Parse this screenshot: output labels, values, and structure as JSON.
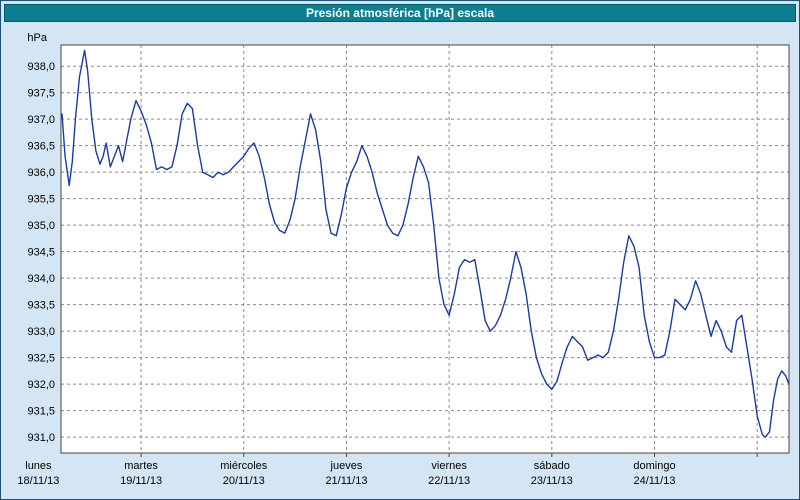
{
  "window": {
    "title": "Presión atmosférica [hPa] escala"
  },
  "chart_data": {
    "type": "line",
    "title": "Presión atmosférica [hPa] escala",
    "ylabel": "hPa",
    "ylim": [
      930.7,
      938.4
    ],
    "yticks": {
      "start": 931.0,
      "end": 938.0,
      "step": 0.5,
      "decimal_separator": ","
    },
    "xlim_days": [
      0.22,
      7.31
    ],
    "grid": true,
    "legend": "none",
    "x_day_ticks": [
      {
        "name": "lunes",
        "date": "18/11/13",
        "t": 0
      },
      {
        "name": "martes",
        "date": "19/11/13",
        "t": 1
      },
      {
        "name": "miércoles",
        "date": "20/11/13",
        "t": 2
      },
      {
        "name": "jueves",
        "date": "21/11/13",
        "t": 3
      },
      {
        "name": "viernes",
        "date": "22/11/13",
        "t": 4
      },
      {
        "name": "sábado",
        "date": "23/11/13",
        "t": 5
      },
      {
        "name": "domingo",
        "date": "24/11/13",
        "t": 6
      }
    ],
    "vertical_gridlines_t": [
      1,
      2,
      3,
      4,
      5,
      6,
      7
    ],
    "colors": {
      "line": "#1b3aa5",
      "plot_bg": "#ffffff",
      "grid": "#8a8a8a",
      "plot_border": "#444444",
      "window_bg": "#d4e6f4",
      "titlebar_bg": "#0e7f93",
      "titlebar_text": "#ffffff"
    },
    "series": [
      {
        "name": "Presión atmosférica",
        "unit": "hPa",
        "color": "#1b3aa5",
        "t_days": [
          0.23,
          0.26,
          0.3,
          0.33,
          0.36,
          0.4,
          0.45,
          0.48,
          0.52,
          0.56,
          0.6,
          0.63,
          0.66,
          0.7,
          0.74,
          0.78,
          0.82,
          0.86,
          0.9,
          0.95,
          1.0,
          1.05,
          1.1,
          1.15,
          1.2,
          1.25,
          1.3,
          1.35,
          1.4,
          1.45,
          1.5,
          1.55,
          1.6,
          1.65,
          1.7,
          1.75,
          1.8,
          1.85,
          1.9,
          1.95,
          2.0,
          2.05,
          2.1,
          2.15,
          2.2,
          2.25,
          2.3,
          2.35,
          2.4,
          2.45,
          2.5,
          2.55,
          2.6,
          2.65,
          2.7,
          2.75,
          2.8,
          2.85,
          2.9,
          2.95,
          3.0,
          3.05,
          3.1,
          3.15,
          3.2,
          3.25,
          3.3,
          3.35,
          3.4,
          3.45,
          3.5,
          3.55,
          3.6,
          3.65,
          3.7,
          3.75,
          3.8,
          3.85,
          3.9,
          3.95,
          4.0,
          4.05,
          4.1,
          4.15,
          4.2,
          4.25,
          4.3,
          4.35,
          4.4,
          4.45,
          4.5,
          4.55,
          4.6,
          4.65,
          4.7,
          4.75,
          4.8,
          4.85,
          4.9,
          4.95,
          5.0,
          5.05,
          5.1,
          5.15,
          5.2,
          5.25,
          5.3,
          5.35,
          5.4,
          5.45,
          5.5,
          5.55,
          5.6,
          5.65,
          5.7,
          5.75,
          5.8,
          5.85,
          5.9,
          5.95,
          6.0,
          6.05,
          6.1,
          6.15,
          6.2,
          6.25,
          6.3,
          6.35,
          6.4,
          6.45,
          6.5,
          6.55,
          6.6,
          6.65,
          6.7,
          6.75,
          6.8,
          6.85,
          6.9,
          6.95,
          7.0,
          7.05,
          7.08,
          7.12,
          7.16,
          7.2,
          7.24,
          7.28,
          7.31
        ],
        "values_hpa": [
          937.1,
          936.3,
          935.75,
          936.2,
          937.0,
          937.8,
          938.3,
          937.9,
          937.0,
          936.4,
          936.15,
          936.3,
          936.55,
          936.1,
          936.3,
          936.5,
          936.2,
          936.6,
          937.0,
          937.35,
          937.15,
          936.9,
          936.55,
          936.05,
          936.1,
          936.05,
          936.1,
          936.5,
          937.1,
          937.3,
          937.2,
          936.5,
          936.0,
          935.95,
          935.9,
          936.0,
          935.95,
          936.0,
          936.1,
          936.2,
          936.3,
          936.45,
          936.55,
          936.3,
          935.9,
          935.4,
          935.05,
          934.9,
          934.85,
          935.1,
          935.5,
          936.1,
          936.6,
          937.1,
          936.8,
          936.2,
          935.3,
          934.85,
          934.8,
          935.2,
          935.7,
          936.0,
          936.2,
          936.5,
          936.3,
          936.0,
          935.6,
          935.3,
          935.0,
          934.85,
          934.8,
          935.0,
          935.4,
          935.9,
          936.3,
          936.1,
          935.8,
          935.0,
          934.0,
          933.5,
          933.3,
          933.7,
          934.2,
          934.35,
          934.3,
          934.35,
          933.8,
          933.2,
          933.0,
          933.1,
          933.3,
          933.6,
          934.0,
          934.5,
          934.2,
          933.7,
          933.0,
          932.5,
          932.2,
          932.0,
          931.9,
          932.05,
          932.4,
          932.7,
          932.9,
          932.8,
          932.7,
          932.45,
          932.5,
          932.55,
          932.5,
          932.6,
          933.0,
          933.6,
          934.3,
          934.8,
          934.6,
          934.2,
          933.3,
          932.8,
          932.5,
          932.5,
          932.55,
          933.0,
          933.6,
          933.5,
          933.4,
          933.6,
          933.95,
          933.7,
          933.3,
          932.9,
          933.2,
          933.0,
          932.7,
          932.6,
          933.2,
          933.3,
          932.7,
          932.1,
          931.4,
          931.05,
          931.0,
          931.1,
          931.7,
          932.1,
          932.25,
          932.15,
          932.0
        ]
      }
    ]
  }
}
